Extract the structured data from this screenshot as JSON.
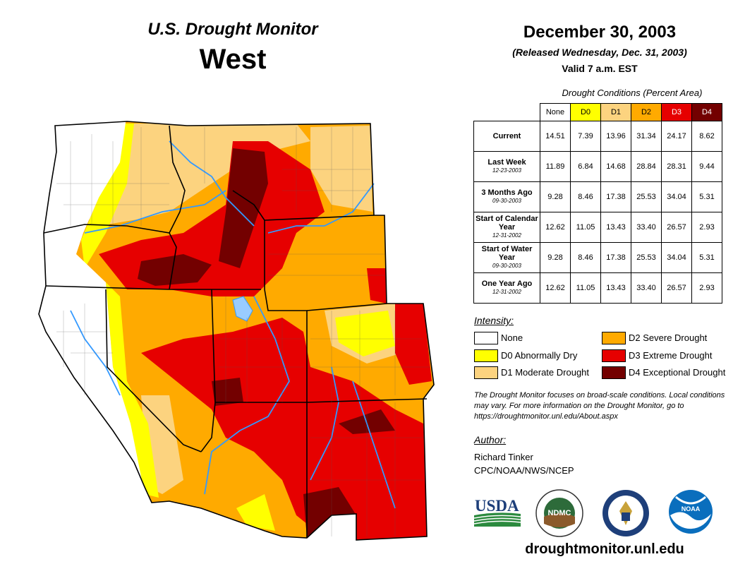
{
  "header": {
    "monitor_title": "U.S. Drought Monitor",
    "region": "West",
    "date": "December 30, 2003",
    "released": "(Released Wednesday, Dec. 31, 2003)",
    "valid": "Valid 7 a.m. EST"
  },
  "table": {
    "title": "Drought Conditions (Percent Area)",
    "columns": [
      "None",
      "D0",
      "D1",
      "D2",
      "D3",
      "D4"
    ],
    "column_colors": [
      "#ffffff",
      "#ffff00",
      "#fcd37f",
      "#ffaa00",
      "#e60000",
      "#730000"
    ],
    "rows": [
      {
        "label": "Current",
        "sublabel": "",
        "values": [
          "14.51",
          "7.39",
          "13.96",
          "31.34",
          "24.17",
          "8.62"
        ]
      },
      {
        "label": "Last Week",
        "sublabel": "12-23-2003",
        "values": [
          "11.89",
          "6.84",
          "14.68",
          "28.84",
          "28.31",
          "9.44"
        ]
      },
      {
        "label": "3 Months Ago",
        "sublabel": "09-30-2003",
        "values": [
          "9.28",
          "8.46",
          "17.38",
          "25.53",
          "34.04",
          "5.31"
        ]
      },
      {
        "label": "Start of Calendar Year",
        "sublabel": "12-31-2002",
        "values": [
          "12.62",
          "11.05",
          "13.43",
          "33.40",
          "26.57",
          "2.93"
        ]
      },
      {
        "label": "Start of Water Year",
        "sublabel": "09-30-2003",
        "values": [
          "9.28",
          "8.46",
          "17.38",
          "25.53",
          "34.04",
          "5.31"
        ]
      },
      {
        "label": "One Year Ago",
        "sublabel": "12-31-2002",
        "values": [
          "12.62",
          "11.05",
          "13.43",
          "33.40",
          "26.57",
          "2.93"
        ]
      }
    ]
  },
  "legend": {
    "title": "Intensity:",
    "items": [
      {
        "label": "None",
        "color": "#ffffff"
      },
      {
        "label": "D0 Abnormally Dry",
        "color": "#ffff00"
      },
      {
        "label": "D1 Moderate Drought",
        "color": "#fcd37f"
      },
      {
        "label": "D2 Severe Drought",
        "color": "#ffaa00"
      },
      {
        "label": "D3 Extreme Drought",
        "color": "#e60000"
      },
      {
        "label": "D4 Exceptional Drought",
        "color": "#730000"
      }
    ]
  },
  "note": "The Drought Monitor focuses on broad-scale conditions. Local conditions may vary. For more information on the Drought Monitor, go to https://droughtmonitor.unl.edu/About.aspx",
  "author": {
    "heading": "Author:",
    "name": "Richard Tinker",
    "org": "CPC/NOAA/NWS/NCEP"
  },
  "logos": {
    "usda": "USDA",
    "ndmc": "NDMC",
    "noaa": "NOAA"
  },
  "url": "droughtmonitor.unl.edu",
  "colors": {
    "none": "#ffffff",
    "d0": "#ffff00",
    "d1": "#fcd37f",
    "d2": "#ffaa00",
    "d3": "#e60000",
    "d4": "#730000",
    "river": "#3399ff",
    "lake": "#99ccff"
  }
}
